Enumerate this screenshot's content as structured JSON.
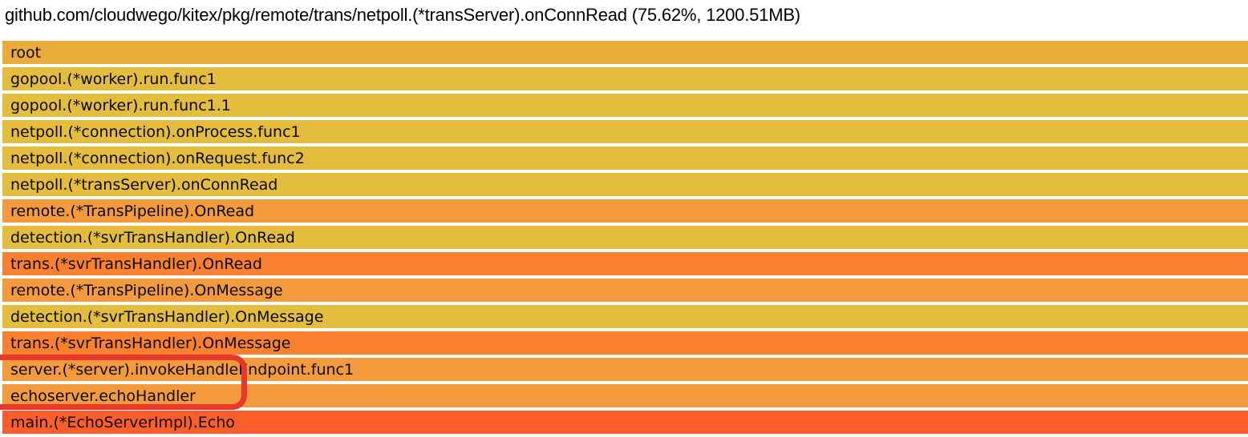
{
  "header": {
    "title": "github.com/cloudwego/kitex/pkg/remote/trans/netpoll.(*transServer).onConnRead (75.62%, 1200.51MB)"
  },
  "selected_frame": {
    "name": "github.com/cloudwego/kitex/pkg/remote/trans/netpoll.(*transServer).onConnRead",
    "percent": "75.62%",
    "value": "1200.51MB"
  },
  "colors": {
    "root_gold": "#e9ab3a",
    "yellow": "#e4bc3e",
    "orange": "#f29a3c",
    "deep_orange": "#f8802f",
    "red_orange": "#fb5e2b",
    "annotation_red": "#e8382b",
    "frame_text": "#0a0a0a",
    "background": "#ffffff"
  },
  "annotation": {
    "color": "#e8382b",
    "highlighted_frames": [
      "server.(*server).invokeHandleEndpoint.func1",
      "echoserver.echoHandler"
    ]
  },
  "chart_data": {
    "type": "bar",
    "variant": "flamegraph",
    "orientation": "stacked-rows-root-at-top",
    "title": "github.com/cloudwego/kitex/pkg/remote/trans/netpoll.(*transServer).onConnRead (75.62%, 1200.51MB)",
    "selected": {
      "percent": 75.62,
      "value_mb": 1200.51
    },
    "frames": [
      {
        "name": "root",
        "width_percent": 100,
        "color": "#e9ab3a"
      },
      {
        "name": "gopool.(*worker).run.func1",
        "width_percent": 100,
        "color": "#e4bc3e"
      },
      {
        "name": "gopool.(*worker).run.func1.1",
        "width_percent": 100,
        "color": "#e4bc3e"
      },
      {
        "name": "netpoll.(*connection).onProcess.func1",
        "width_percent": 100,
        "color": "#e4bc3e"
      },
      {
        "name": "netpoll.(*connection).onRequest.func2",
        "width_percent": 100,
        "color": "#e4bc3e"
      },
      {
        "name": "netpoll.(*transServer).onConnRead",
        "width_percent": 100,
        "color": "#e4bc3e"
      },
      {
        "name": "remote.(*TransPipeline).OnRead",
        "width_percent": 100,
        "color": "#f29a3c"
      },
      {
        "name": "detection.(*svrTransHandler).OnRead",
        "width_percent": 100,
        "color": "#e4bc3e"
      },
      {
        "name": "trans.(*svrTransHandler).OnRead",
        "width_percent": 100,
        "color": "#f8802f"
      },
      {
        "name": "remote.(*TransPipeline).OnMessage",
        "width_percent": 100,
        "color": "#f29a3c"
      },
      {
        "name": "detection.(*svrTransHandler).OnMessage",
        "width_percent": 100,
        "color": "#e4bc3e"
      },
      {
        "name": "trans.(*svrTransHandler).OnMessage",
        "width_percent": 100,
        "color": "#f8802f"
      },
      {
        "name": "server.(*server).invokeHandleEndpoint.func1",
        "width_percent": 100,
        "color": "#f29a3c"
      },
      {
        "name": "echoserver.echoHandler",
        "width_percent": 100,
        "color": "#f29a3c"
      },
      {
        "name": "main.(*EchoServerImpl).Echo",
        "width_percent": 100,
        "color": "#fb5e2b"
      }
    ]
  }
}
